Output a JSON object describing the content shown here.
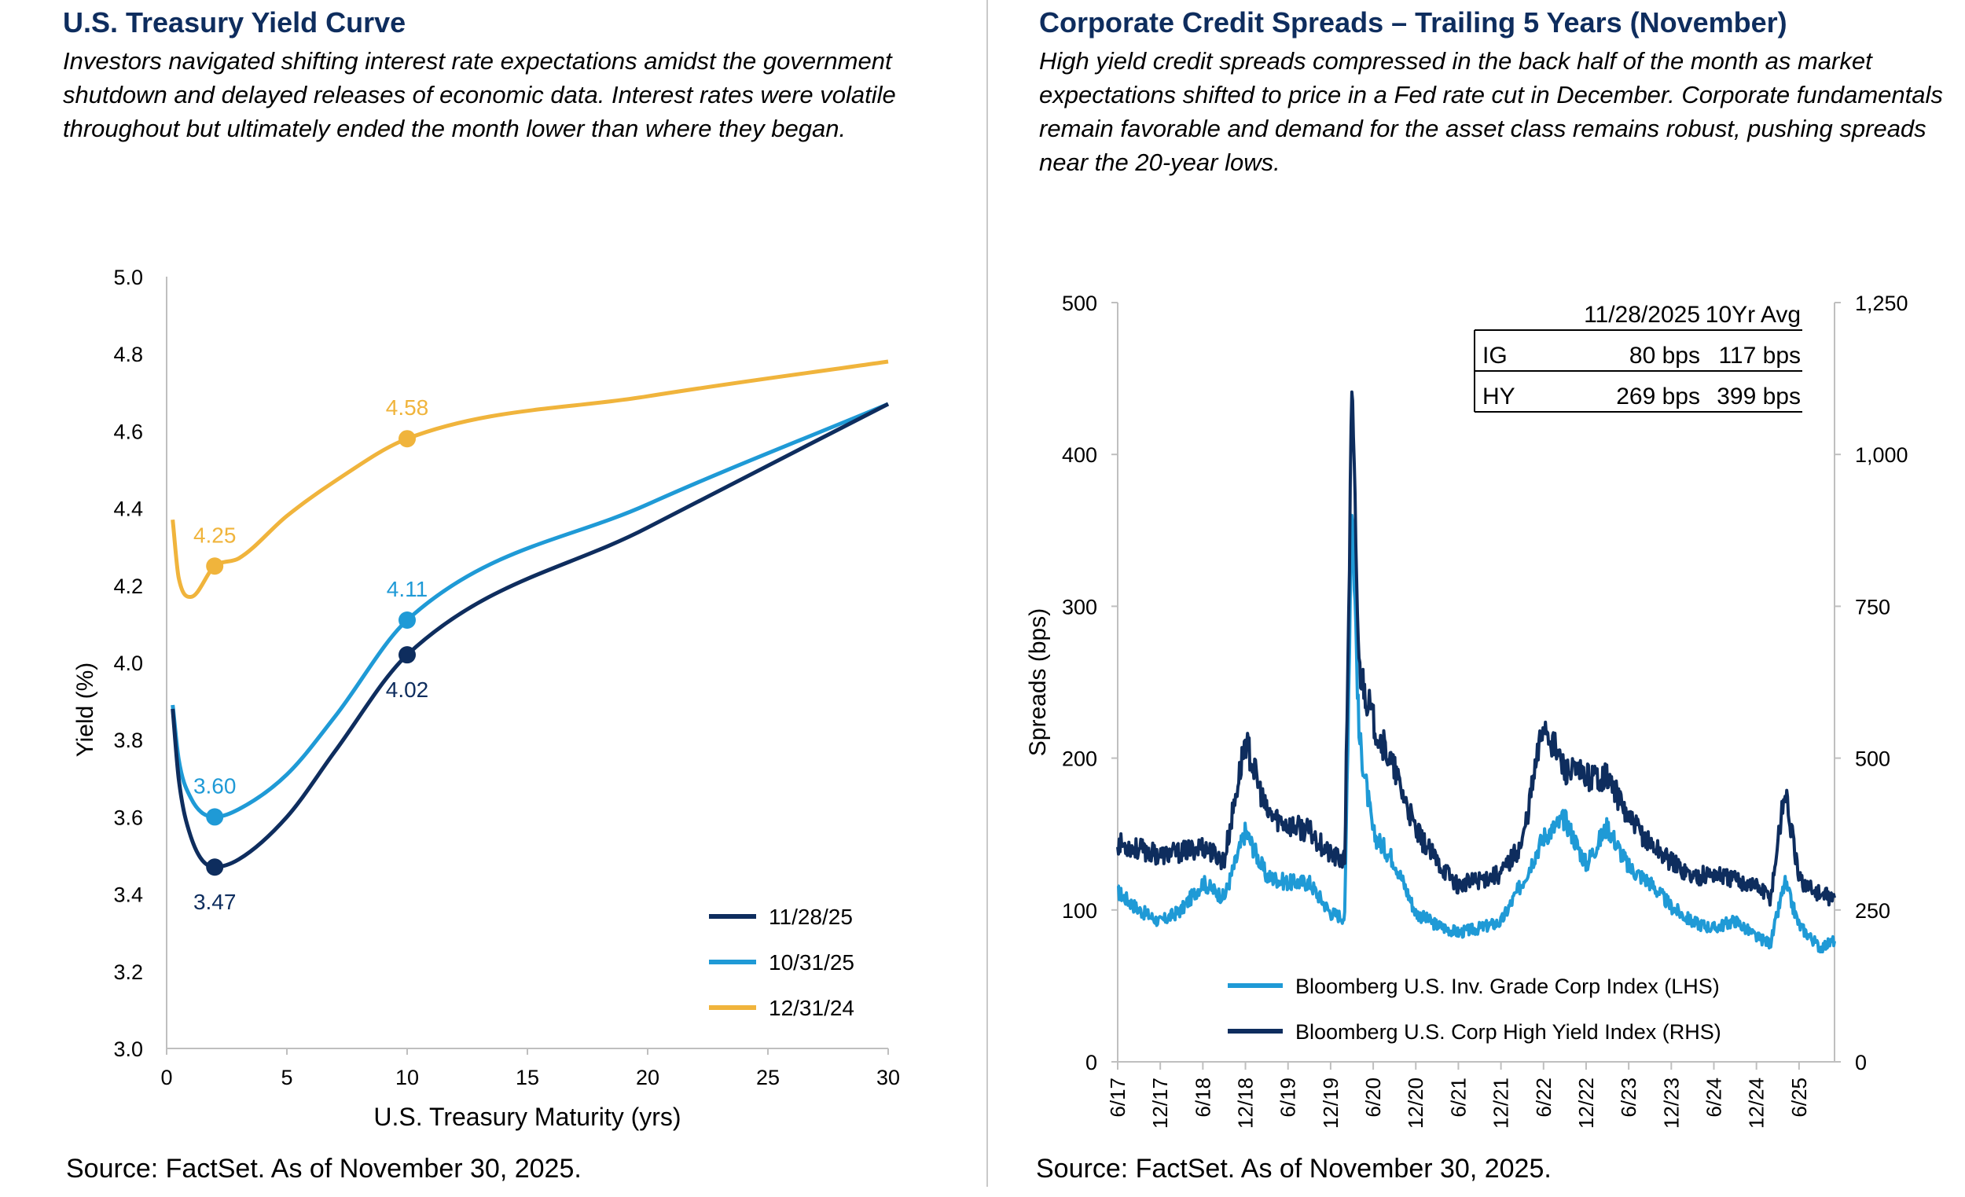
{
  "left": {
    "title": "U.S. Treasury Yield Curve",
    "subtitle": "Investors navigated shifting interest rate expectations amidst the government shutdown and delayed releases of economic data. Interest rates were volatile throughout but ultimately ended the month lower than where they began.",
    "source": "Source: FactSet. As of November 30, 2025."
  },
  "right": {
    "title": "Corporate Credit Spreads – Trailing 5 Years (November)",
    "subtitle": "High yield credit spreads compressed in the back half of the month as market expectations shifted to price in a Fed rate cut in December. Corporate fundamentals remain favorable and demand for the asset class remains robust, pushing spreads near the 20-year lows.",
    "source": "Source: FactSet. As of November 30, 2025."
  },
  "colors": {
    "navy": "#0e2d5e",
    "blue": "#1f9ad6",
    "gold": "#f0b43c"
  },
  "chart_data": [
    {
      "type": "line",
      "xlabel": "U.S. Treasury Maturity (yrs)",
      "ylabel": "Yield (%)",
      "xlim": [
        0,
        30
      ],
      "ylim": [
        3.0,
        5.0
      ],
      "xticks": [
        "0",
        "5",
        "10",
        "15",
        "20",
        "25",
        "30"
      ],
      "yticks": [
        "3.0",
        "3.2",
        "3.4",
        "3.6",
        "3.8",
        "4.0",
        "4.2",
        "4.4",
        "4.6",
        "4.8",
        "5.0"
      ],
      "legend_position": "bottom-right",
      "series": [
        {
          "name": "11/28/25",
          "color": "#0e2d5e",
          "x": [
            0.25,
            0.5,
            1,
            2,
            3,
            5,
            7,
            10,
            20,
            30
          ],
          "y": [
            3.88,
            3.7,
            3.55,
            3.47,
            3.49,
            3.6,
            3.77,
            4.02,
            4.35,
            4.67
          ],
          "labels": [
            {
              "x": 2,
              "y": 3.47,
              "text": "3.47",
              "pos": "below"
            },
            {
              "x": 10,
              "y": 4.02,
              "text": "4.02",
              "pos": "below"
            }
          ]
        },
        {
          "name": "10/31/25",
          "color": "#1f9ad6",
          "x": [
            0.25,
            0.5,
            1,
            2,
            3,
            5,
            7,
            10,
            20,
            30
          ],
          "y": [
            3.89,
            3.75,
            3.65,
            3.6,
            3.62,
            3.71,
            3.86,
            4.11,
            4.41,
            4.67
          ],
          "labels": [
            {
              "x": 2,
              "y": 3.6,
              "text": "3.60",
              "pos": "above"
            },
            {
              "x": 10,
              "y": 4.11,
              "text": "4.11",
              "pos": "above"
            }
          ]
        },
        {
          "name": "12/31/24",
          "color": "#f0b43c",
          "x": [
            0.25,
            0.5,
            1,
            2,
            3,
            5,
            7,
            10,
            20,
            30
          ],
          "y": [
            4.37,
            4.22,
            4.17,
            4.25,
            4.27,
            4.38,
            4.47,
            4.58,
            4.69,
            4.78
          ],
          "labels": [
            {
              "x": 2,
              "y": 4.25,
              "text": "4.25",
              "pos": "above"
            },
            {
              "x": 10,
              "y": 4.58,
              "text": "4.58",
              "pos": "above"
            }
          ]
        }
      ]
    },
    {
      "type": "line",
      "ylabel": "Spreads (bps)",
      "ylim_left": [
        0,
        500
      ],
      "ylim_right": [
        0,
        1250
      ],
      "yticks_left": [
        "0",
        "100",
        "200",
        "300",
        "400",
        "500"
      ],
      "yticks_right": [
        "0",
        "250",
        "500",
        "750",
        "1,000",
        "1,250"
      ],
      "xticks": [
        "6/17",
        "12/17",
        "6/18",
        "12/18",
        "6/19",
        "12/19",
        "6/20",
        "12/20",
        "6/21",
        "12/21",
        "6/22",
        "12/22",
        "6/23",
        "12/23",
        "6/24",
        "12/24",
        "6/25"
      ],
      "legend_position": "bottom-left",
      "table": {
        "header": [
          "",
          "11/28/2025",
          "10Yr Avg"
        ],
        "rows": [
          [
            "IG",
            "80 bps",
            "117 bps"
          ],
          [
            "HY",
            "269 bps",
            "399 bps"
          ]
        ]
      },
      "series": [
        {
          "name": "Bloomberg U.S. Inv. Grade Corp Index (LHS)",
          "axis": "left",
          "color": "#1f9ad6",
          "x": [
            "2017-06",
            "2017-09",
            "2017-12",
            "2018-03",
            "2018-06",
            "2018-09",
            "2018-12",
            "2019-03",
            "2019-06",
            "2019-09",
            "2019-12",
            "2020-02",
            "2020-03",
            "2020-04",
            "2020-06",
            "2020-09",
            "2020-12",
            "2021-03",
            "2021-06",
            "2021-09",
            "2021-12",
            "2022-03",
            "2022-06",
            "2022-09",
            "2022-12",
            "2023-03",
            "2023-06",
            "2023-09",
            "2023-12",
            "2024-03",
            "2024-06",
            "2024-09",
            "2024-12",
            "2025-02",
            "2025-04",
            "2025-06",
            "2025-09",
            "2025-11"
          ],
          "y": [
            112,
            100,
            92,
            100,
            118,
            108,
            152,
            122,
            118,
            118,
            98,
            95,
            372,
            215,
            150,
            132,
            98,
            90,
            85,
            88,
            92,
            118,
            148,
            160,
            130,
            155,
            128,
            118,
            102,
            92,
            88,
            93,
            82,
            78,
            118,
            90,
            75,
            80
          ]
        },
        {
          "name": "Bloomberg U.S. Corp High Yield Index (RHS)",
          "axis": "right",
          "color": "#0e2d5e",
          "x": [
            "2017-06",
            "2017-09",
            "2017-12",
            "2018-03",
            "2018-06",
            "2018-09",
            "2018-12",
            "2019-03",
            "2019-06",
            "2019-09",
            "2019-12",
            "2020-02",
            "2020-03",
            "2020-04",
            "2020-06",
            "2020-09",
            "2020-12",
            "2021-03",
            "2021-06",
            "2021-09",
            "2021-12",
            "2022-03",
            "2022-06",
            "2022-09",
            "2022-12",
            "2023-03",
            "2023-06",
            "2023-09",
            "2023-12",
            "2024-03",
            "2024-06",
            "2024-09",
            "2024-12",
            "2025-02",
            "2025-04",
            "2025-06",
            "2025-09",
            "2025-11"
          ],
          "y": [
            360,
            350,
            340,
            345,
            355,
            330,
            530,
            410,
            390,
            380,
            340,
            330,
            1100,
            650,
            560,
            480,
            380,
            330,
            290,
            300,
            310,
            360,
            560,
            480,
            470,
            470,
            400,
            360,
            330,
            305,
            310,
            300,
            290,
            270,
            450,
            300,
            275,
            269
          ]
        }
      ]
    }
  ]
}
